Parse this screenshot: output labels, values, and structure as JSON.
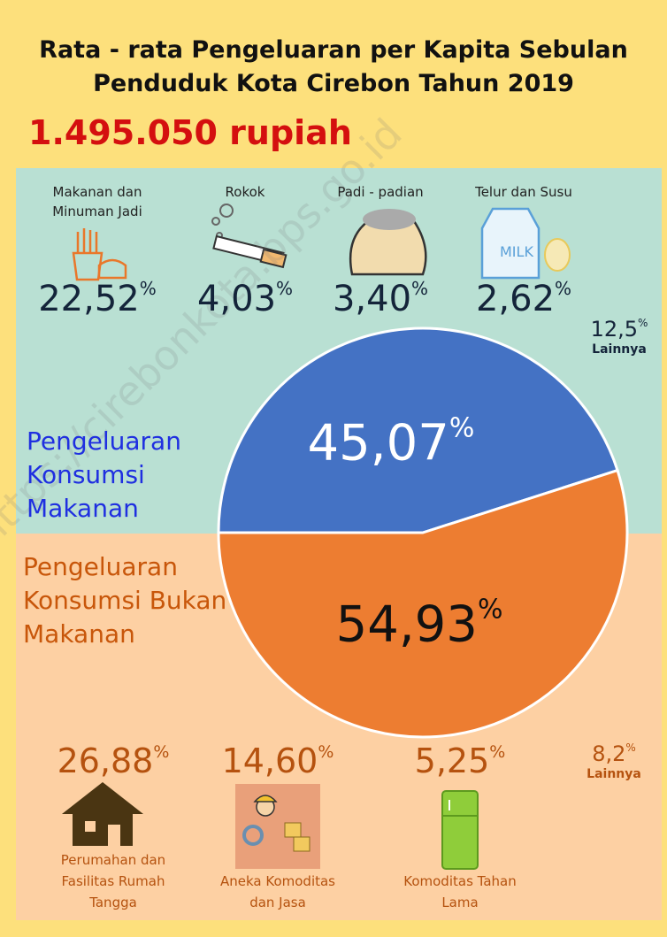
{
  "chart_data": {
    "type": "pie",
    "title": "Rata - rata Pengeluaran per Kapita Sebulan Penduduk Kota Cirebon Tahun 2019",
    "total": "1.495.050 rupiah",
    "unit": "%",
    "categories": [
      "Pengeluaran Konsumsi Makanan",
      "Pengeluaran Konsumsi Bukan Makanan"
    ],
    "values": [
      45.07,
      54.93
    ],
    "value_labels": [
      "45,07",
      "54,93"
    ],
    "colors": [
      "#4472c4",
      "#ed7d31"
    ],
    "food_items": [
      {
        "label": "Makanan dan Minuman Jadi",
        "value": 22.52,
        "value_label": "22,52"
      },
      {
        "label": "Rokok",
        "value": 4.03,
        "value_label": "4,03"
      },
      {
        "label": "Padi - padian",
        "value": 3.4,
        "value_label": "3,40"
      },
      {
        "label": "Telur dan Susu",
        "value": 2.62,
        "value_label": "2,62"
      }
    ],
    "food_other": {
      "label": "Lainnya",
      "value": 12.5,
      "value_label": "12,5"
    },
    "nonfood_items": [
      {
        "label": "Perumahan dan Fasilitas Rumah Tangga",
        "value": 26.88,
        "value_label": "26,88"
      },
      {
        "label": "Aneka Komoditas dan Jasa",
        "value": 14.6,
        "value_label": "14,60"
      },
      {
        "label": "Komoditas Tahan Lama",
        "value": 5.25,
        "value_label": "5,25"
      }
    ],
    "nonfood_other": {
      "label": "Lainnya",
      "value": 8.2,
      "value_label": "8,2"
    },
    "watermark": "https://cirebonkota.bps.go.id"
  }
}
